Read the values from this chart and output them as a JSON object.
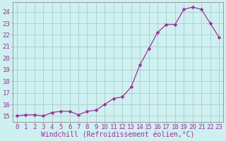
{
  "x": [
    0,
    1,
    2,
    3,
    4,
    5,
    6,
    7,
    8,
    9,
    10,
    11,
    12,
    13,
    14,
    15,
    16,
    17,
    18,
    19,
    20,
    21,
    22,
    23
  ],
  "y": [
    15.0,
    15.1,
    15.1,
    15.0,
    15.3,
    15.4,
    15.4,
    15.1,
    15.4,
    15.5,
    16.0,
    16.5,
    16.65,
    17.5,
    19.4,
    20.8,
    22.2,
    22.9,
    22.9,
    24.2,
    24.4,
    24.2,
    23.0,
    21.8
  ],
  "line_color": "#993399",
  "marker": "D",
  "marker_size": 2.5,
  "bg_color": "#cff0f0",
  "grid_color": "#aacccc",
  "xlabel": "Windchill (Refroidissement éolien,°C)",
  "xlabel_fontsize": 7,
  "ylabel_ticks": [
    15,
    16,
    17,
    18,
    19,
    20,
    21,
    22,
    23,
    24
  ],
  "xtick_labels": [
    "0",
    "1",
    "2",
    "3",
    "4",
    "5",
    "6",
    "7",
    "8",
    "9",
    "10",
    "11",
    "12",
    "13",
    "14",
    "15",
    "16",
    "17",
    "18",
    "19",
    "20",
    "21",
    "22",
    "23"
  ],
  "ylim": [
    14.5,
    24.8
  ],
  "xlim": [
    -0.5,
    23.5
  ],
  "tick_color": "#993399",
  "tick_fontsize": 6.5,
  "figsize": [
    3.2,
    2.0
  ],
  "dpi": 100
}
